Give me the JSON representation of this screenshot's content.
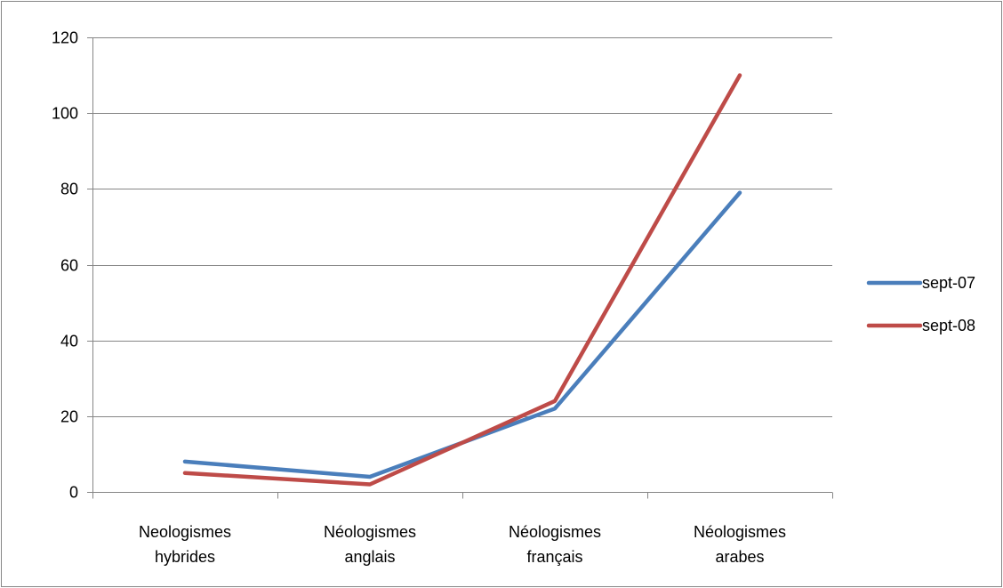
{
  "chart_data": {
    "type": "line",
    "title": "",
    "xlabel": "",
    "ylabel": "",
    "categories": [
      [
        "Neologismes",
        "hybrides"
      ],
      [
        "Néologismes",
        "anglais"
      ],
      [
        "Néologismes",
        "français"
      ],
      [
        "Néologismes",
        "arabes"
      ]
    ],
    "series": [
      {
        "name": "sept-07",
        "color": "#4A7EBB",
        "values": [
          8,
          4,
          22,
          79
        ]
      },
      {
        "name": "sept-08",
        "color": "#BE4B48",
        "values": [
          5,
          2,
          24,
          110
        ]
      }
    ],
    "ylim": [
      0,
      120
    ],
    "yticks": [
      0,
      20,
      40,
      60,
      80,
      100,
      120
    ],
    "grid": true,
    "legend_position": "right"
  }
}
